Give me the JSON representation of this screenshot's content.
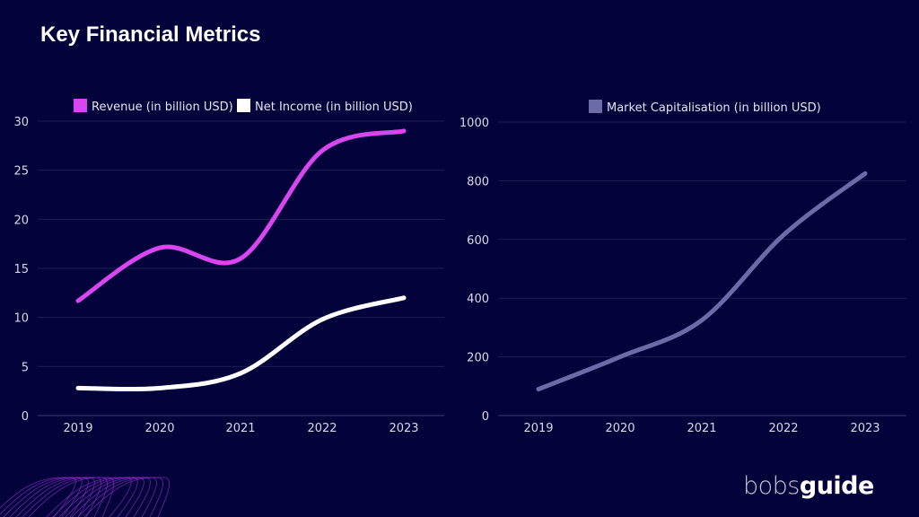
{
  "header": {
    "title": "Key Financial Metrics"
  },
  "brand": {
    "part1": "bobs",
    "part2": "guide"
  },
  "colors": {
    "background": "#03023a",
    "revenue": "#d946ef",
    "net_income": "#ffffff",
    "market_cap": "#6b6ba8",
    "grid": "#1e1d55"
  },
  "chart_data": [
    {
      "type": "line",
      "categories": [
        "2019",
        "2020",
        "2021",
        "2022",
        "2023"
      ],
      "series": [
        {
          "name": "Revenue (in billion USD)",
          "values": [
            11.7,
            17.1,
            16.0,
            27.0,
            29.0
          ],
          "color": "#d946ef"
        },
        {
          "name": "Net Income (in billion USD)",
          "values": [
            2.8,
            2.8,
            4.3,
            9.8,
            12.0
          ],
          "color": "#ffffff"
        }
      ],
      "yticks": [
        "0",
        "5",
        "10",
        "15",
        "20",
        "25",
        "30"
      ],
      "ylim": [
        0,
        30
      ],
      "grid": true,
      "legend": "top",
      "smooth": true
    },
    {
      "type": "line",
      "categories": [
        "2019",
        "2020",
        "2021",
        "2022",
        "2023"
      ],
      "series": [
        {
          "name": "Market Capitalisation (in billion USD)",
          "values": [
            90,
            200,
            325,
            615,
            825
          ],
          "color": "#6b6ba8"
        }
      ],
      "yticks": [
        "0",
        "200",
        "400",
        "600",
        "800",
        "1000"
      ],
      "ylim": [
        0,
        1000
      ],
      "grid": true,
      "legend": "top",
      "smooth": true
    }
  ]
}
